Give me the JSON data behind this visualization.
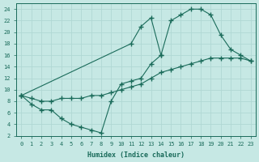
{
  "xlabel": "Humidex (Indice chaleur)",
  "ylabel": "",
  "bg_color": "#c6e8e4",
  "line_color": "#1a6b5a",
  "grid_color": "#b0d8d4",
  "xlim": [
    -0.5,
    23.5
  ],
  "ylim": [
    2,
    25
  ],
  "xticks": [
    0,
    1,
    2,
    3,
    4,
    5,
    6,
    7,
    8,
    9,
    10,
    11,
    12,
    13,
    14,
    15,
    16,
    17,
    18,
    19,
    20,
    21,
    22,
    23
  ],
  "yticks": [
    2,
    4,
    6,
    8,
    10,
    12,
    14,
    16,
    18,
    20,
    22,
    24
  ],
  "line_upper_x": [
    0,
    11,
    12,
    13,
    14,
    15,
    16,
    17,
    18,
    19,
    20,
    21,
    22,
    23
  ],
  "line_upper_y": [
    9,
    18,
    21,
    22.5,
    16,
    22,
    23,
    24,
    24,
    23,
    19.5,
    17,
    16,
    15
  ],
  "line_mid_x": [
    0,
    1,
    2,
    3,
    4,
    5,
    6,
    7,
    8,
    9,
    10,
    11,
    12,
    13,
    14,
    15,
    16,
    17,
    18,
    19,
    20,
    21,
    22,
    23
  ],
  "line_mid_y": [
    9,
    8.5,
    8,
    8,
    8.5,
    8.5,
    8.5,
    9,
    9,
    9.5,
    10,
    10.5,
    11,
    12,
    13,
    13.5,
    14,
    14.5,
    15,
    15.5,
    15.5,
    15.5,
    15.5,
    15
  ],
  "line_low_x": [
    0,
    1,
    2,
    3,
    4,
    5,
    6,
    7,
    8,
    9,
    10,
    11,
    12,
    13,
    14
  ],
  "line_low_y": [
    9,
    7.5,
    6.5,
    6.5,
    5,
    4,
    3.5,
    3,
    2.5,
    8,
    11,
    11.5,
    12,
    14.5,
    16
  ]
}
